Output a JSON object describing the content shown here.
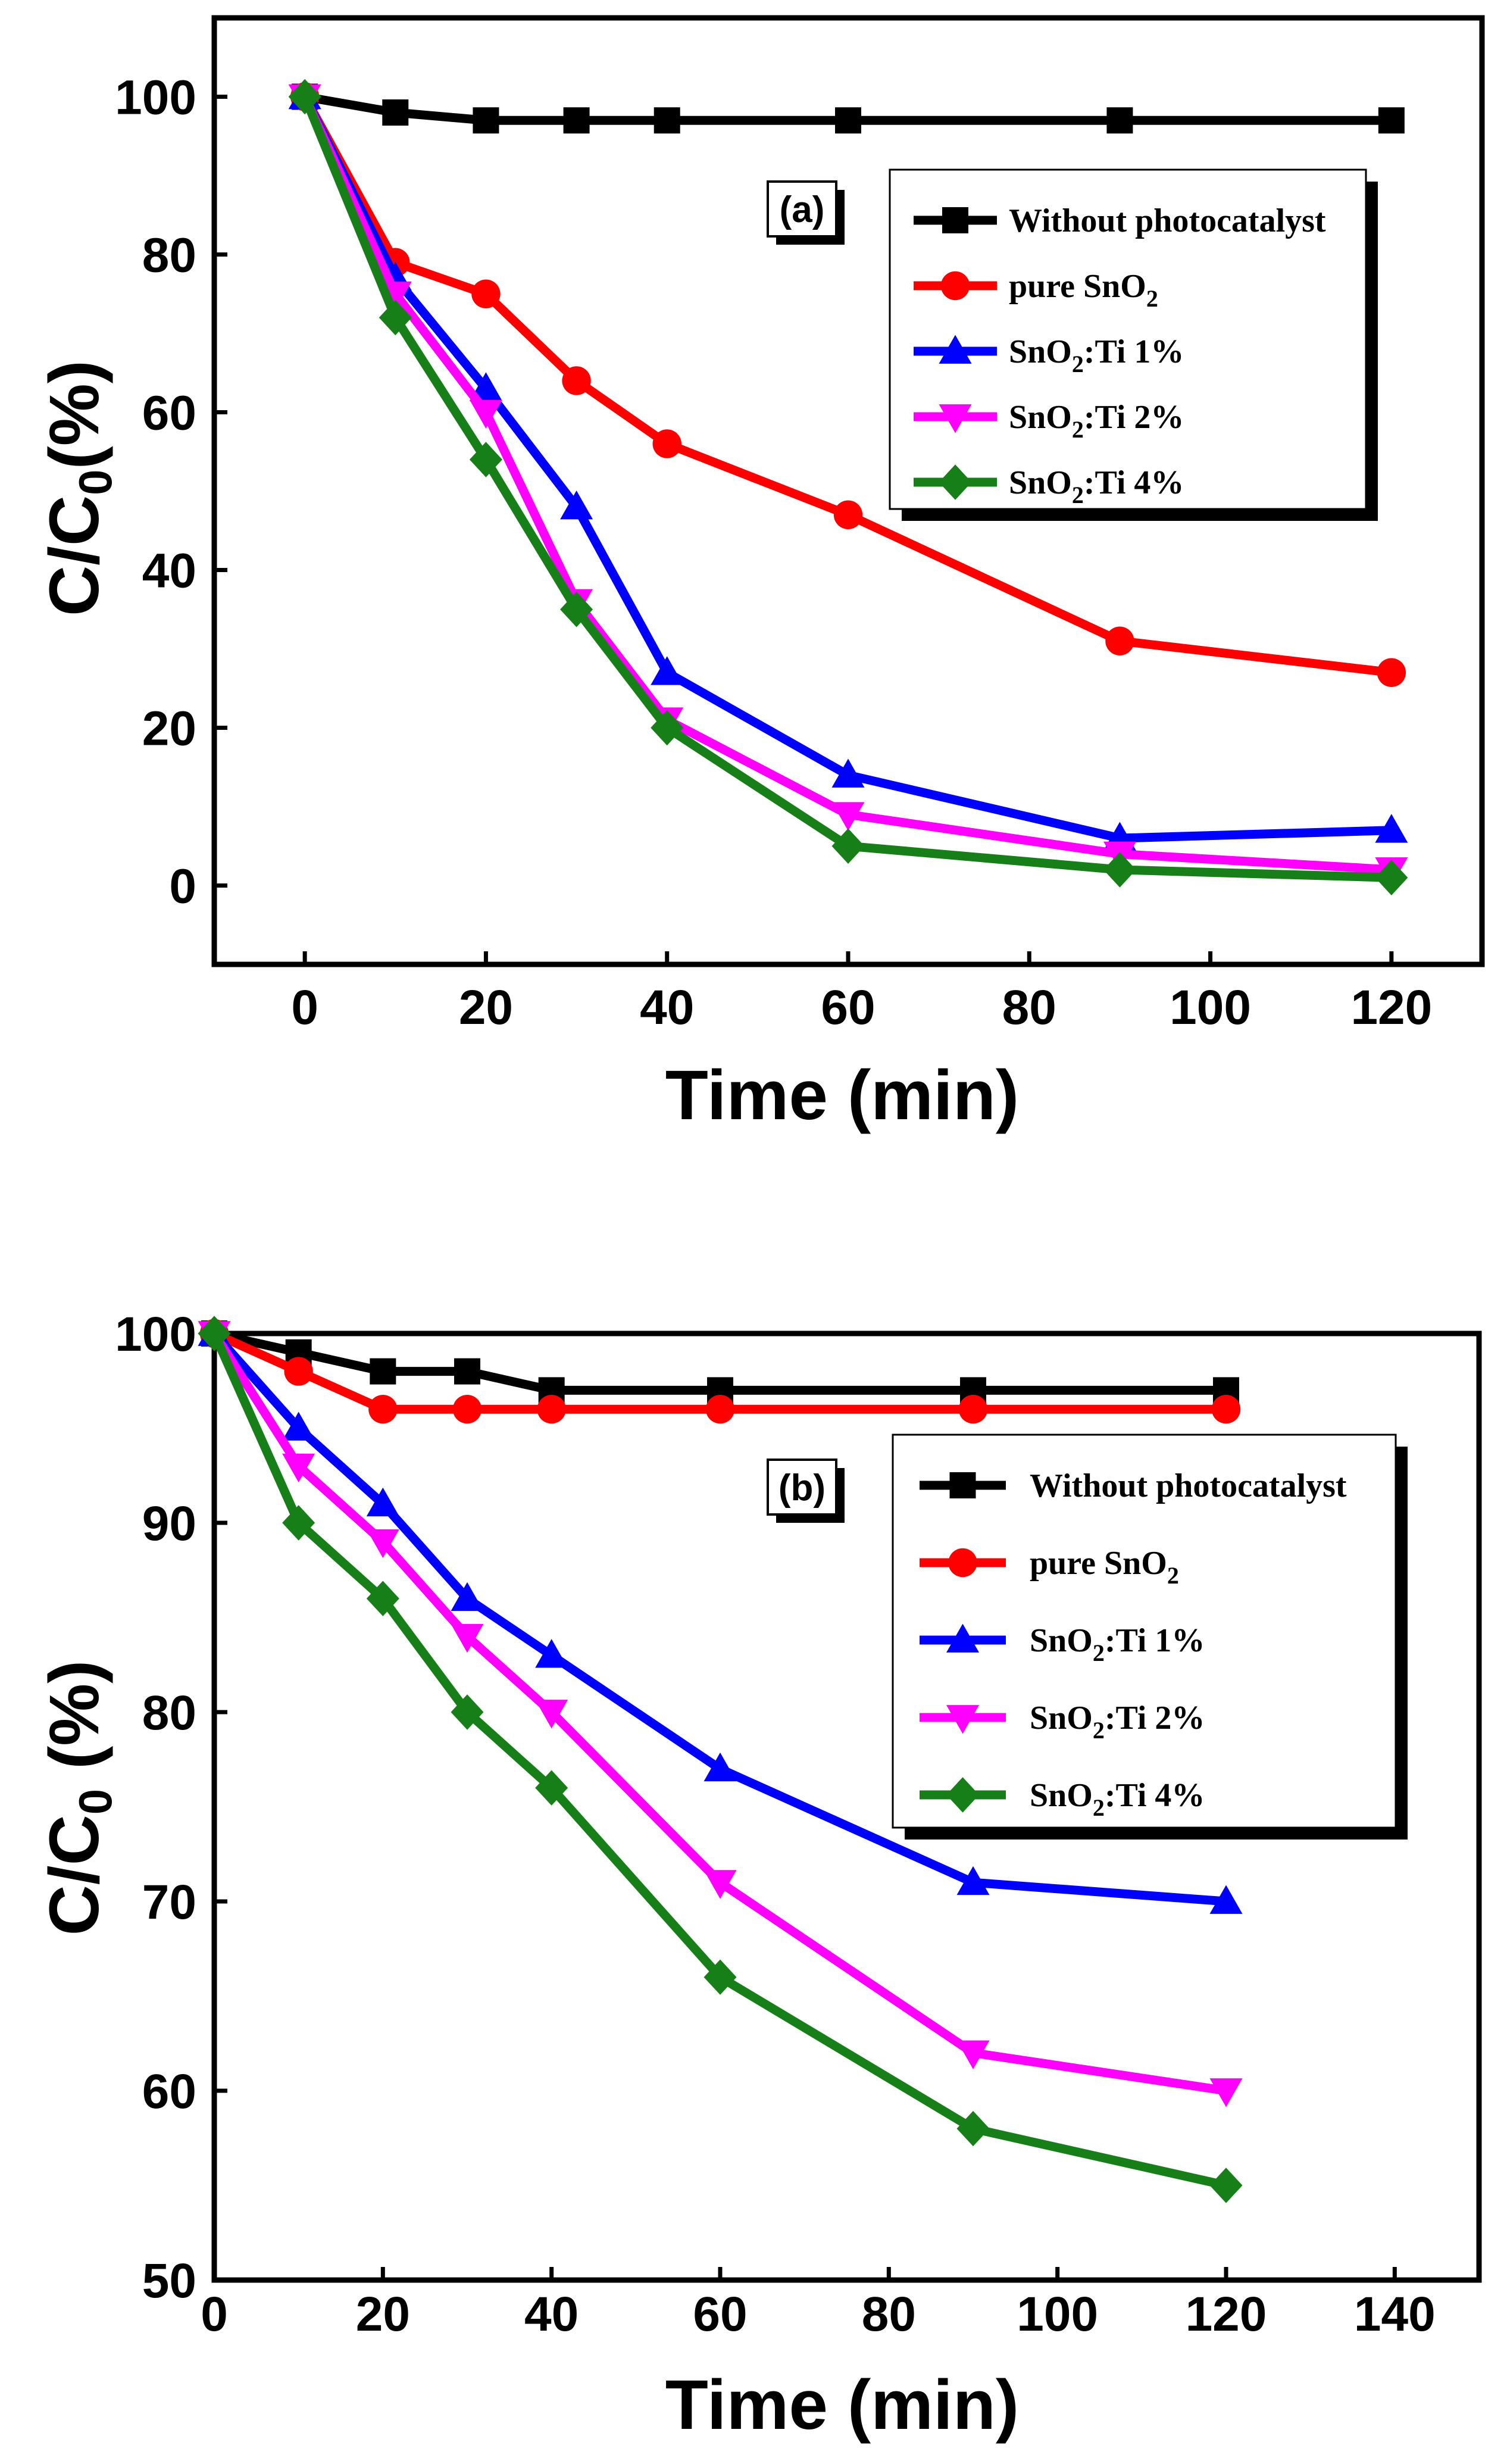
{
  "chart_data": [
    {
      "type": "line",
      "panel_label": "(a)",
      "xlabel": "Time (min)",
      "ylabel_main": "C/C",
      "ylabel_sub": "0",
      "ylabel_tail": "(%)",
      "xlim": [
        -10,
        130
      ],
      "ylim": [
        -10,
        110
      ],
      "x_ticks": [
        0,
        20,
        40,
        60,
        80,
        100,
        120
      ],
      "y_ticks": [
        0,
        20,
        40,
        60,
        80,
        100
      ],
      "legend_position": "top-right",
      "series": [
        {
          "name": "Without photocatalyst",
          "label_main": "Without photocatalyst",
          "label_sub": "",
          "label_tail": "",
          "color": "#000000",
          "marker": "square",
          "x": [
            0,
            10,
            20,
            30,
            40,
            60,
            90,
            120
          ],
          "y": [
            100,
            98,
            97,
            97,
            97,
            97,
            97,
            97
          ]
        },
        {
          "name": "pure SnO2",
          "label_main": "pure SnO",
          "label_sub": "2",
          "label_tail": "",
          "color": "#ff0000",
          "marker": "circle",
          "x": [
            0,
            10,
            20,
            30,
            40,
            60,
            90,
            120
          ],
          "y": [
            100,
            79,
            75,
            64,
            56,
            47,
            31,
            27
          ]
        },
        {
          "name": "SnO2:Ti 1%",
          "label_main": "SnO",
          "label_sub": "2",
          "label_tail": ":Ti 1%",
          "color": "#0000ff",
          "marker": "triangle-up",
          "x": [
            0,
            10,
            20,
            30,
            40,
            60,
            90,
            120
          ],
          "y": [
            100,
            77,
            63,
            48,
            27,
            14,
            6,
            7
          ]
        },
        {
          "name": "SnO2:Ti 2%",
          "label_main": "SnO",
          "label_sub": "2",
          "label_tail": ":Ti 2%",
          "color": "#ff00ff",
          "marker": "triangle-down",
          "x": [
            0,
            10,
            20,
            30,
            40,
            60,
            90,
            120
          ],
          "y": [
            100,
            75,
            60,
            36,
            21,
            9,
            4,
            2
          ]
        },
        {
          "name": "SnO2:Ti 4%",
          "label_main": "SnO",
          "label_sub": "2",
          "label_tail": ":Ti 4%",
          "color": "#177f17",
          "marker": "diamond",
          "x": [
            0,
            10,
            20,
            30,
            40,
            60,
            90,
            120
          ],
          "y": [
            100,
            72,
            54,
            35,
            20,
            5,
            2,
            1
          ]
        }
      ]
    },
    {
      "type": "line",
      "panel_label": "(b)",
      "xlabel": "Time (min)",
      "ylabel_main": "C/C",
      "ylabel_sub": "0",
      "ylabel_tail": " (%)",
      "xlim": [
        0,
        150
      ],
      "ylim": [
        50,
        100
      ],
      "x_ticks": [
        0,
        20,
        40,
        60,
        80,
        100,
        120,
        140
      ],
      "y_ticks": [
        50,
        60,
        70,
        80,
        90,
        100
      ],
      "legend_position": "top-right",
      "series": [
        {
          "name": "Without photocatalyst",
          "label_main": "Without photocatalyst",
          "label_sub": "",
          "label_tail": "",
          "color": "#000000",
          "marker": "square",
          "x": [
            0,
            10,
            20,
            30,
            40,
            60,
            90,
            120
          ],
          "y": [
            100,
            99,
            98,
            98,
            97,
            97,
            97,
            97
          ]
        },
        {
          "name": "pure SnO2",
          "label_main": "pure SnO",
          "label_sub": "2",
          "label_tail": "",
          "color": "#ff0000",
          "marker": "circle",
          "x": [
            0,
            10,
            20,
            30,
            40,
            60,
            90,
            120
          ],
          "y": [
            100,
            98,
            96,
            96,
            96,
            96,
            96,
            96
          ]
        },
        {
          "name": "SnO2:Ti 1%",
          "label_main": "SnO",
          "label_sub": "2",
          "label_tail": ":Ti 1%",
          "color": "#0000ff",
          "marker": "triangle-up",
          "x": [
            0,
            10,
            20,
            30,
            40,
            60,
            90,
            120
          ],
          "y": [
            100,
            95,
            91,
            86,
            83,
            77,
            71,
            70
          ]
        },
        {
          "name": "SnO2:Ti 2%",
          "label_main": "SnO",
          "label_sub": "2",
          "label_tail": ":Ti 2%",
          "color": "#ff00ff",
          "marker": "triangle-down",
          "x": [
            0,
            10,
            20,
            30,
            40,
            60,
            90,
            120
          ],
          "y": [
            100,
            93,
            89,
            84,
            80,
            71,
            62,
            60
          ]
        },
        {
          "name": "SnO2:Ti 4%",
          "label_main": "SnO",
          "label_sub": "2",
          "label_tail": ":Ti 4%",
          "color": "#177f17",
          "marker": "diamond",
          "x": [
            0,
            10,
            20,
            30,
            40,
            60,
            90,
            120
          ],
          "y": [
            100,
            90,
            86,
            80,
            76,
            66,
            58,
            55
          ]
        }
      ]
    }
  ]
}
